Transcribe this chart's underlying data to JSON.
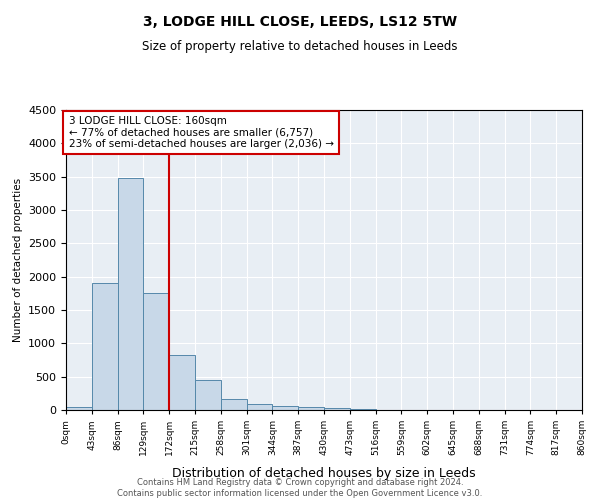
{
  "title": "3, LODGE HILL CLOSE, LEEDS, LS12 5TW",
  "subtitle": "Size of property relative to detached houses in Leeds",
  "xlabel": "Distribution of detached houses by size in Leeds",
  "ylabel": "Number of detached properties",
  "bar_edges": [
    0,
    43,
    86,
    129,
    172,
    215,
    258,
    301,
    344,
    387,
    430,
    473,
    516,
    559,
    602,
    645,
    688,
    731,
    774,
    817,
    860
  ],
  "bar_heights": [
    40,
    1900,
    3480,
    1750,
    830,
    450,
    160,
    90,
    60,
    45,
    30,
    10,
    0,
    0,
    0,
    0,
    0,
    0,
    0,
    0
  ],
  "bar_color": "#c8d8e8",
  "bar_edgecolor": "#5588aa",
  "vline_x": 172,
  "vline_color": "#cc0000",
  "ylim": [
    0,
    4500
  ],
  "annotation_text": "3 LODGE HILL CLOSE: 160sqm\n← 77% of detached houses are smaller (6,757)\n23% of semi-detached houses are larger (2,036) →",
  "annotation_box_color": "#ffffff",
  "annotation_box_edgecolor": "#cc0000",
  "footer": "Contains HM Land Registry data © Crown copyright and database right 2024.\nContains public sector information licensed under the Open Government Licence v3.0.",
  "tick_labels": [
    "0sqm",
    "43sqm",
    "86sqm",
    "129sqm",
    "172sqm",
    "215sqm",
    "258sqm",
    "301sqm",
    "344sqm",
    "387sqm",
    "430sqm",
    "473sqm",
    "516sqm",
    "559sqm",
    "602sqm",
    "645sqm",
    "688sqm",
    "731sqm",
    "774sqm",
    "817sqm",
    "860sqm"
  ],
  "title_fontsize": 10,
  "subtitle_fontsize": 8.5
}
